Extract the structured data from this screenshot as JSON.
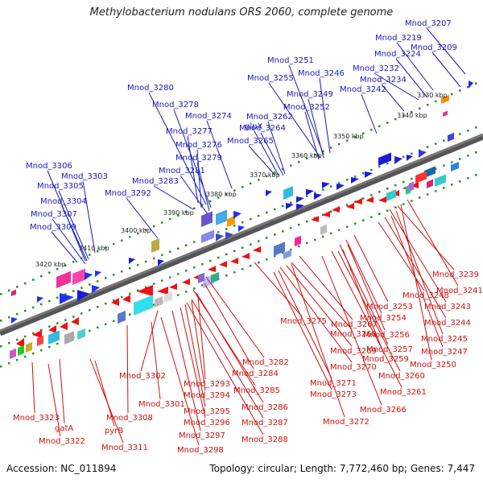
{
  "title": "Methylobacterium nodulans ORS 2060, complete genome",
  "footer": {
    "accession": "Accession: NC_011894",
    "summary": "Topology: circular; Length: 7,772,460 bp; Genes: 7,447"
  },
  "colors": {
    "forward_label": "#1a1ab8",
    "reverse_label": "#cc1111",
    "forward_gene": "#1a1ae0",
    "reverse_gene": "#ee1111",
    "backbone": "#777777",
    "tick_dots": "#2e8b2e"
  },
  "kbp_ticks": [
    "3330 kbp",
    "3340 kbp",
    "3350 kbp",
    "3360 kbp",
    "3370 kbp",
    "3380 kbp",
    "3390 kbp",
    "3400 kbp",
    "3410 kbp",
    "3420 kbp"
  ],
  "forward_labels": [
    "Mnod_3207",
    "Mnod_3219",
    "Mnod_3209",
    "Mnod_3224",
    "Mnod_3251",
    "Mnod_3232",
    "Mnod_3246",
    "Mnod_3234",
    "Mnod_3255",
    "Mnod_3242",
    "Mnod_3249",
    "Mnod_3280",
    "Mnod_3252",
    "Mnod_3262",
    "glpX",
    "Mnod_3278",
    "Mnod_3274",
    "Mnod_3264",
    "Mnod_3277",
    "Mnod_3265",
    "Mnod_3276",
    "Mnod_3279",
    "Mnod_3281",
    "Mnod_3283",
    "Mnod_3306",
    "Mnod_3303",
    "Mnod_3305",
    "Mnod_3292",
    "Mnod_3304",
    "Mnod_3307",
    "Mnod_3309"
  ],
  "reverse_labels": [
    "Mnod_3239",
    "Mnod_3241",
    "Mnod_3248",
    "Mnod_3243",
    "Mnod_3253",
    "Mnod_3244",
    "Mnod_3275",
    "Mnod_3254",
    "Mnod_3267",
    "Mnod_3245",
    "Mnod_3268",
    "Mnod_3256",
    "Mnod_3247",
    "Mnod_3269",
    "Mnod_3257",
    "Mnod_3282",
    "Mnod_3259",
    "Mnod_3250",
    "Mnod_3270",
    "Mnod_3284",
    "Mnod_3302",
    "Mnod_3293",
    "Mnod_3260",
    "Mnod_3271",
    "Mnod_3294",
    "Mnod_3285",
    "Mnod_3273",
    "Mnod_3261",
    "Mnod_3301",
    "Mnod_3286",
    "Mnod_3295",
    "Mnod_3266",
    "Mnod_3308",
    "Mnod_3323",
    "Mnod_3296",
    "Mnod_3287",
    "Mnod_3272",
    "gatA",
    "pyrB",
    "Mnod_3297",
    "Mnod_3288",
    "Mnod_3322",
    "Mnod_3311",
    "Mnod_3298"
  ]
}
